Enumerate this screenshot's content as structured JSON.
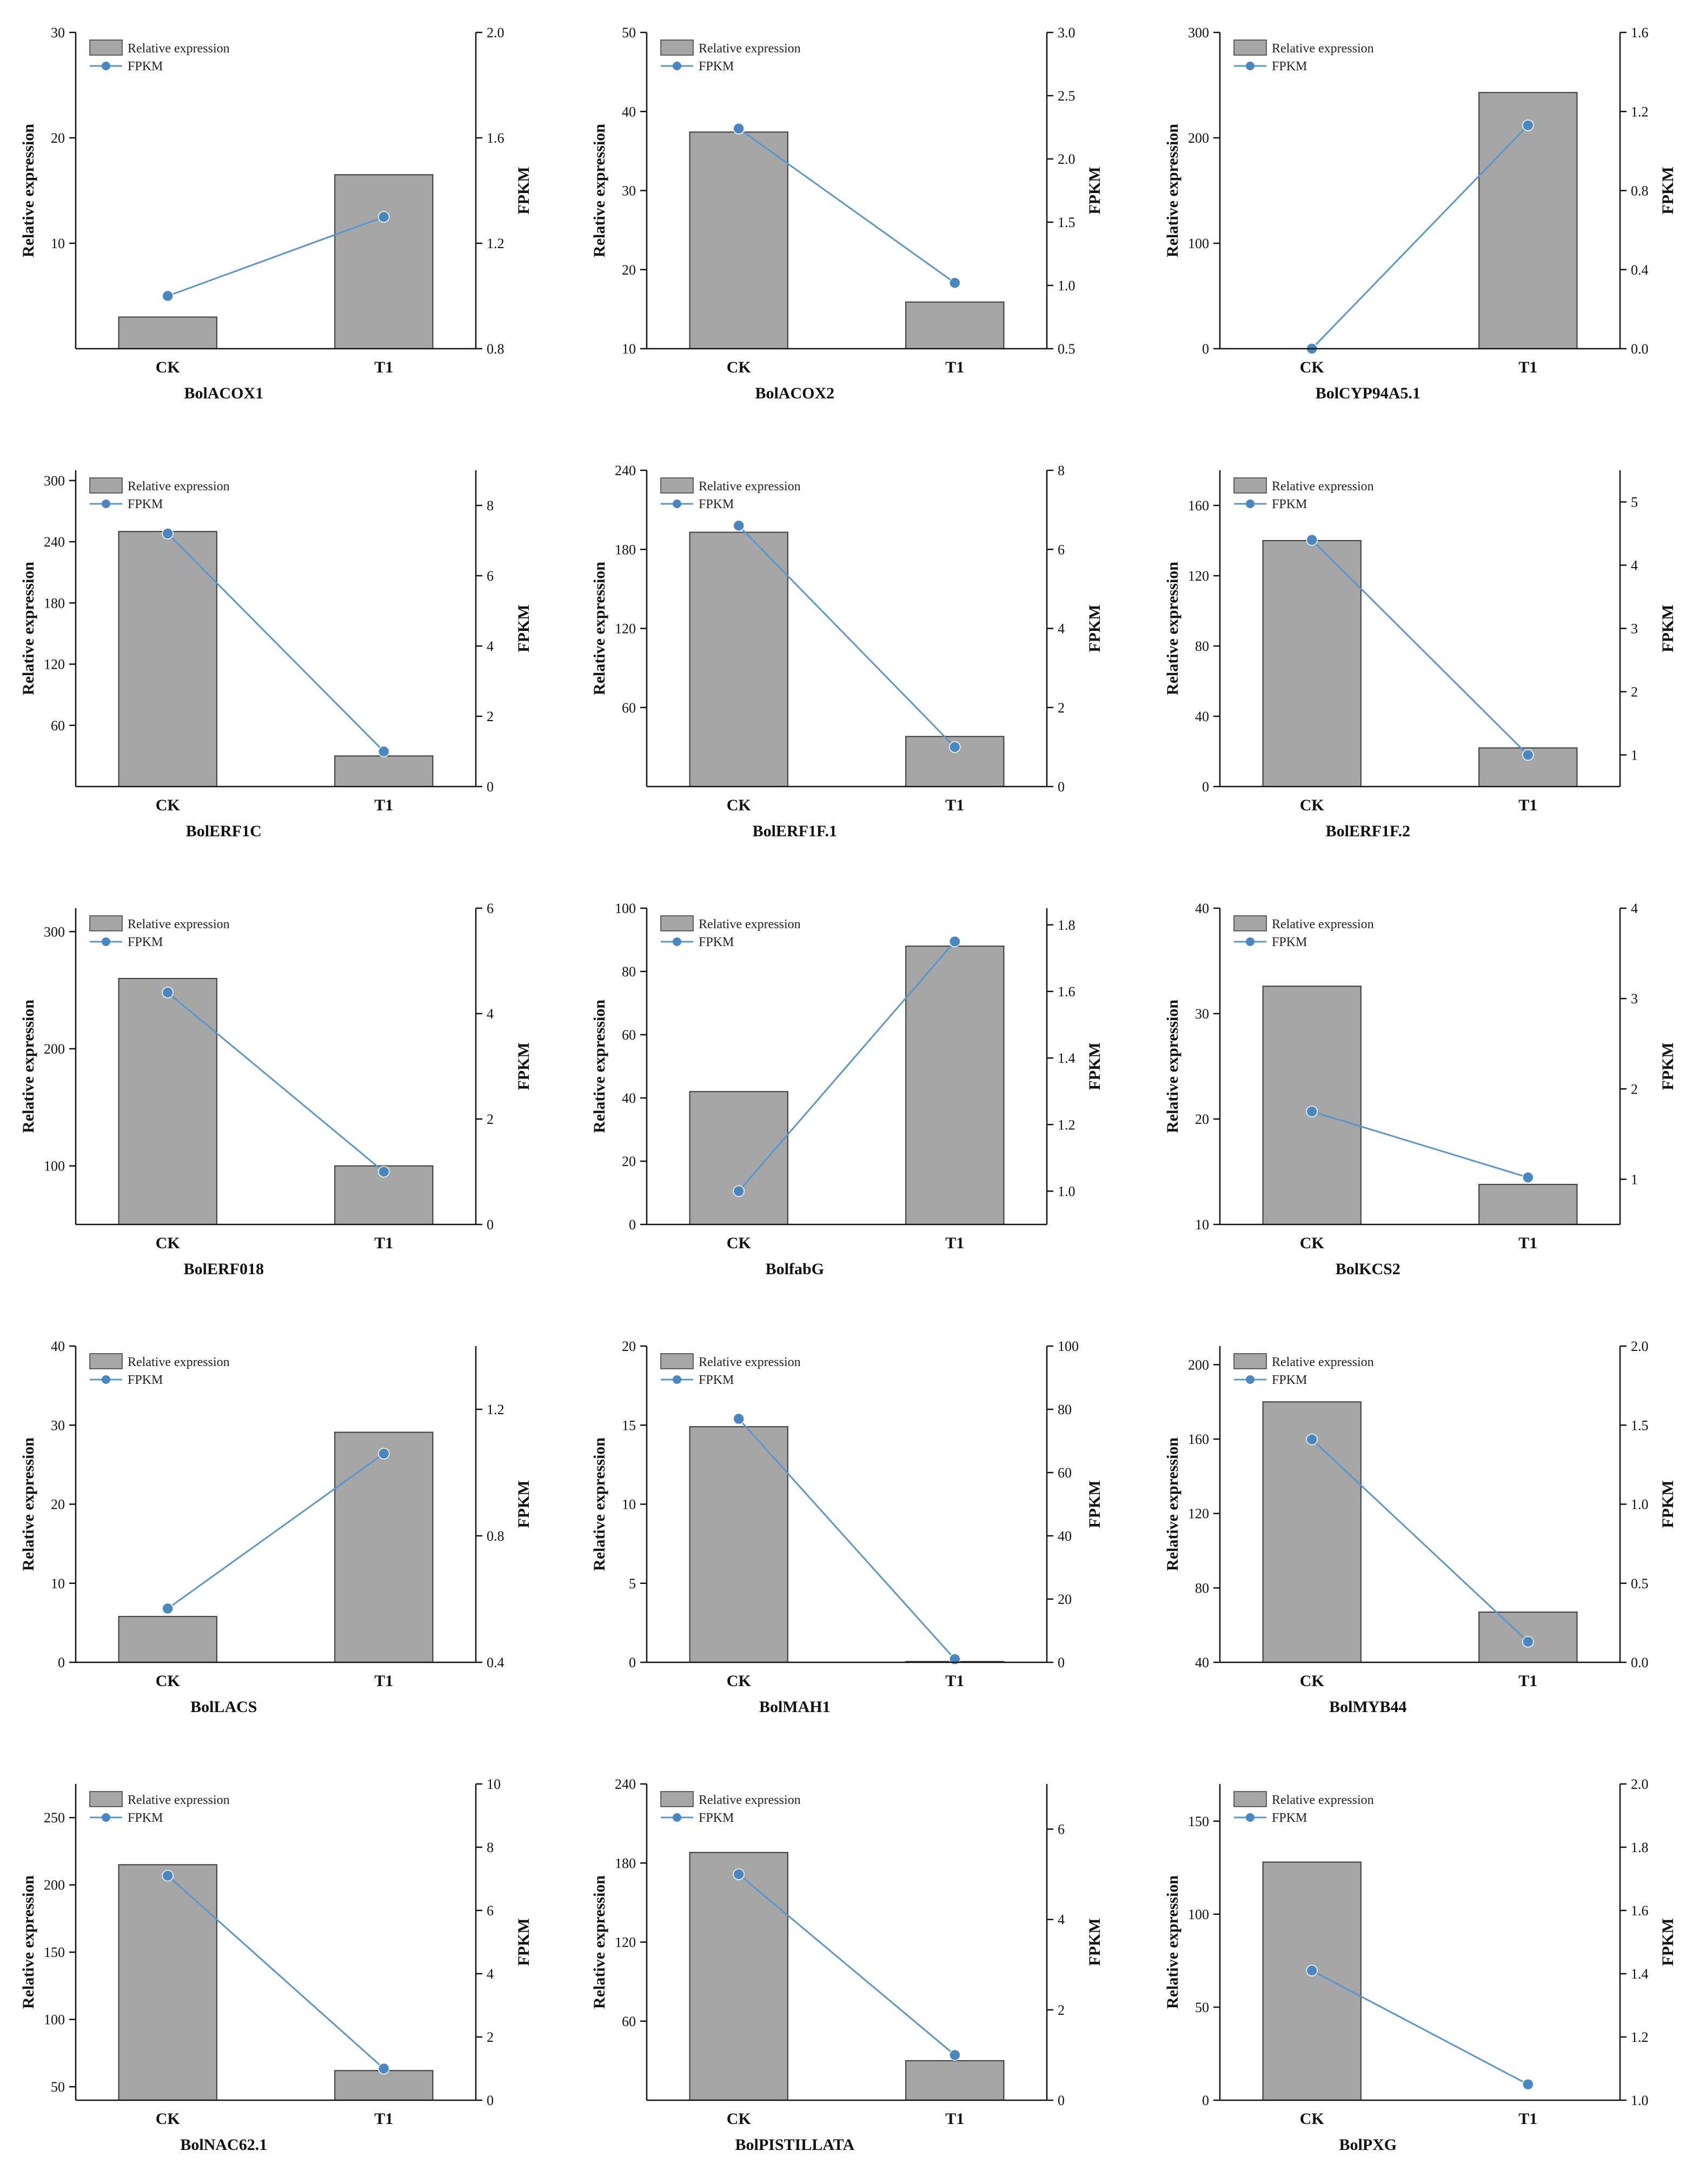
{
  "colors": {
    "bar_fill": "#a6a6a6",
    "bar_stroke": "#3a3a3a",
    "line": "#5b95c9",
    "marker": "#4a86c0",
    "axis": "#111111"
  },
  "legend": {
    "bar_label": "Relative expression",
    "line_label": "FPKM"
  },
  "chart_data": [
    {
      "type": "bar+line",
      "title": "BolACOX1",
      "categories": [
        "CK",
        "T1"
      ],
      "ylabel": "Relative expression",
      "y2label": "FPKM",
      "ylim": [
        0,
        30
      ],
      "yticks": [
        10,
        20,
        30
      ],
      "y2lim": [
        0.8,
        2.0
      ],
      "y2ticks": [
        0.8,
        1.2,
        1.6,
        2.0
      ],
      "series": [
        {
          "name": "Relative expression",
          "axis": "left",
          "values": [
            3,
            16.5
          ]
        },
        {
          "name": "FPKM",
          "axis": "right",
          "values": [
            1.0,
            1.3
          ]
        }
      ]
    },
    {
      "type": "bar+line",
      "title": "BolACOX2",
      "categories": [
        "CK",
        "T1"
      ],
      "ylabel": "Relative expression",
      "y2label": "FPKM",
      "ylim": [
        10,
        50
      ],
      "yticks": [
        10,
        20,
        30,
        40,
        50
      ],
      "y2lim": [
        0.5,
        3.0
      ],
      "y2ticks": [
        0.5,
        1.0,
        1.5,
        2.0,
        2.5,
        3.0
      ],
      "series": [
        {
          "name": "Relative expression",
          "axis": "left",
          "values": [
            37.4,
            15.9
          ]
        },
        {
          "name": "FPKM",
          "axis": "right",
          "values": [
            2.24,
            1.02
          ]
        }
      ]
    },
    {
      "type": "bar+line",
      "title": "BolCYP94A5.1",
      "categories": [
        "CK",
        "T1"
      ],
      "ylabel": "Relative expression",
      "y2label": "FPKM",
      "ylim": [
        0,
        300
      ],
      "yticks": [
        0,
        100,
        200,
        300
      ],
      "y2lim": [
        0.0,
        1.6
      ],
      "y2ticks": [
        0.0,
        0.4,
        0.8,
        1.2,
        1.6
      ],
      "series": [
        {
          "name": "Relative expression",
          "axis": "left",
          "values": [
            0,
            243
          ]
        },
        {
          "name": "FPKM",
          "axis": "right",
          "values": [
            0.0,
            1.13
          ]
        }
      ]
    },
    {
      "type": "bar+line",
      "title": "BolERF1C",
      "categories": [
        "CK",
        "T1"
      ],
      "ylabel": "Relative expression",
      "y2label": "FPKM",
      "ylim": [
        0,
        310
      ],
      "yticks": [
        60,
        120,
        180,
        240,
        300
      ],
      "y2lim": [
        0,
        9
      ],
      "y2ticks": [
        0,
        2,
        4,
        6,
        8
      ],
      "series": [
        {
          "name": "Relative expression",
          "axis": "left",
          "values": [
            250,
            30
          ]
        },
        {
          "name": "FPKM",
          "axis": "right",
          "values": [
            7.2,
            1.0
          ]
        }
      ]
    },
    {
      "type": "bar+line",
      "title": "BolERF1F.1",
      "categories": [
        "CK",
        "T1"
      ],
      "ylabel": "Relative expression",
      "y2label": "FPKM",
      "ylim": [
        0,
        240
      ],
      "yticks": [
        60,
        120,
        180,
        240
      ],
      "y2lim": [
        0,
        8
      ],
      "y2ticks": [
        0,
        2,
        4,
        6,
        8
      ],
      "series": [
        {
          "name": "Relative expression",
          "axis": "left",
          "values": [
            193,
            38
          ]
        },
        {
          "name": "FPKM",
          "axis": "right",
          "values": [
            6.6,
            1.0
          ]
        }
      ]
    },
    {
      "type": "bar+line",
      "title": "BolERF1F.2",
      "categories": [
        "CK",
        "T1"
      ],
      "ylabel": "Relative expression",
      "y2label": "FPKM",
      "ylim": [
        0,
        180
      ],
      "yticks": [
        0,
        40,
        80,
        120,
        160
      ],
      "y2lim": [
        0.5,
        5.5
      ],
      "y2ticks": [
        1,
        2,
        3,
        4,
        5
      ],
      "series": [
        {
          "name": "Relative expression",
          "axis": "left",
          "values": [
            140,
            22
          ]
        },
        {
          "name": "FPKM",
          "axis": "right",
          "values": [
            4.4,
            1.0
          ]
        }
      ]
    },
    {
      "type": "bar+line",
      "title": "BolERF018",
      "categories": [
        "CK",
        "T1"
      ],
      "ylabel": "Relative expression",
      "y2label": "FPKM",
      "ylim": [
        50,
        320
      ],
      "yticks": [
        100,
        200,
        300
      ],
      "y2lim": [
        0,
        6
      ],
      "y2ticks": [
        0,
        2,
        4,
        6
      ],
      "series": [
        {
          "name": "Relative expression",
          "axis": "left",
          "values": [
            260,
            100
          ]
        },
        {
          "name": "FPKM",
          "axis": "right",
          "values": [
            4.4,
            1.0
          ]
        }
      ]
    },
    {
      "type": "bar+line",
      "title": "BolfabG",
      "categories": [
        "CK",
        "T1"
      ],
      "ylabel": "Relative expression",
      "y2label": "FPKM",
      "ylim": [
        0,
        100
      ],
      "yticks": [
        0,
        20,
        40,
        60,
        80,
        100
      ],
      "y2lim": [
        0.9,
        1.85
      ],
      "y2ticks": [
        1.0,
        1.2,
        1.4,
        1.6,
        1.8
      ],
      "series": [
        {
          "name": "Relative expression",
          "axis": "left",
          "values": [
            42,
            88
          ]
        },
        {
          "name": "FPKM",
          "axis": "right",
          "values": [
            1.0,
            1.75
          ]
        }
      ]
    },
    {
      "type": "bar+line",
      "title": "BolKCS2",
      "categories": [
        "CK",
        "T1"
      ],
      "ylabel": "Relative expression",
      "y2label": "FPKM",
      "ylim": [
        10,
        40
      ],
      "yticks": [
        10,
        20,
        30,
        40
      ],
      "y2lim": [
        0.5,
        4
      ],
      "y2ticks": [
        1,
        2,
        3,
        4
      ],
      "series": [
        {
          "name": "Relative expression",
          "axis": "left",
          "values": [
            32.6,
            13.8
          ]
        },
        {
          "name": "FPKM",
          "axis": "right",
          "values": [
            1.75,
            1.02
          ]
        }
      ]
    },
    {
      "type": "bar+line",
      "title": "BolLACS",
      "categories": [
        "CK",
        "T1"
      ],
      "ylabel": "Relative expression",
      "y2label": "FPKM",
      "ylim": [
        0,
        40
      ],
      "yticks": [
        0,
        10,
        20,
        30,
        40
      ],
      "y2lim": [
        0.4,
        1.4
      ],
      "y2ticks": [
        0.4,
        0.8,
        1.2
      ],
      "series": [
        {
          "name": "Relative expression",
          "axis": "left",
          "values": [
            5.8,
            29.1
          ]
        },
        {
          "name": "FPKM",
          "axis": "right",
          "values": [
            0.57,
            1.06
          ]
        }
      ]
    },
    {
      "type": "bar+line",
      "title": "BolMAH1",
      "categories": [
        "CK",
        "T1"
      ],
      "ylabel": "Relative expression",
      "y2label": "FPKM",
      "ylim": [
        0,
        20
      ],
      "yticks": [
        0,
        5,
        10,
        15,
        20
      ],
      "y2lim": [
        0,
        100
      ],
      "y2ticks": [
        0,
        20,
        40,
        60,
        80,
        100
      ],
      "series": [
        {
          "name": "Relative expression",
          "axis": "left",
          "values": [
            14.9,
            0.05
          ]
        },
        {
          "name": "FPKM",
          "axis": "right",
          "values": [
            77,
            1
          ]
        }
      ]
    },
    {
      "type": "bar+line",
      "title": "BolMYB44",
      "categories": [
        "CK",
        "T1"
      ],
      "ylabel": "Relative expression",
      "y2label": "FPKM",
      "ylim": [
        40,
        210
      ],
      "yticks": [
        40,
        80,
        120,
        160,
        200
      ],
      "y2lim": [
        0.0,
        2.0
      ],
      "y2ticks": [
        0.0,
        0.5,
        1.0,
        1.5,
        2.0
      ],
      "series": [
        {
          "name": "Relative expression",
          "axis": "left",
          "values": [
            180,
            67
          ]
        },
        {
          "name": "FPKM",
          "axis": "right",
          "values": [
            1.41,
            0.13
          ]
        }
      ]
    },
    {
      "type": "bar+line",
      "title": "BolNAC62.1",
      "categories": [
        "CK",
        "T1"
      ],
      "ylabel": "Relative expression",
      "y2label": "FPKM",
      "ylim": [
        40,
        275
      ],
      "yticks": [
        50,
        100,
        150,
        200,
        250
      ],
      "y2lim": [
        0,
        10
      ],
      "y2ticks": [
        0,
        2,
        4,
        6,
        8,
        10
      ],
      "series": [
        {
          "name": "Relative expression",
          "axis": "left",
          "values": [
            215,
            62
          ]
        },
        {
          "name": "FPKM",
          "axis": "right",
          "values": [
            7.1,
            1.0
          ]
        }
      ]
    },
    {
      "type": "bar+line",
      "title": "BolPISTILLATA",
      "categories": [
        "CK",
        "T1"
      ],
      "ylabel": "Relative expression",
      "y2label": "FPKM",
      "ylim": [
        0,
        240
      ],
      "yticks": [
        60,
        120,
        180,
        240
      ],
      "y2lim": [
        0,
        7
      ],
      "y2ticks": [
        0,
        2,
        4,
        6
      ],
      "series": [
        {
          "name": "Relative expression",
          "axis": "left",
          "values": [
            188,
            30
          ]
        },
        {
          "name": "FPKM",
          "axis": "right",
          "values": [
            5.0,
            1.0
          ]
        }
      ]
    },
    {
      "type": "bar+line",
      "title": "BolPXG",
      "categories": [
        "CK",
        "T1"
      ],
      "ylabel": "Relative expression",
      "y2label": "FPKM",
      "ylim": [
        0,
        170
      ],
      "yticks": [
        0,
        50,
        100,
        150
      ],
      "y2lim": [
        1.0,
        2.0
      ],
      "y2ticks": [
        1.0,
        1.2,
        1.4,
        1.6,
        1.8,
        2.0
      ],
      "series": [
        {
          "name": "Relative expression",
          "axis": "left",
          "values": [
            128,
            0
          ]
        },
        {
          "name": "FPKM",
          "axis": "right",
          "values": [
            1.41,
            1.05
          ]
        }
      ]
    }
  ]
}
